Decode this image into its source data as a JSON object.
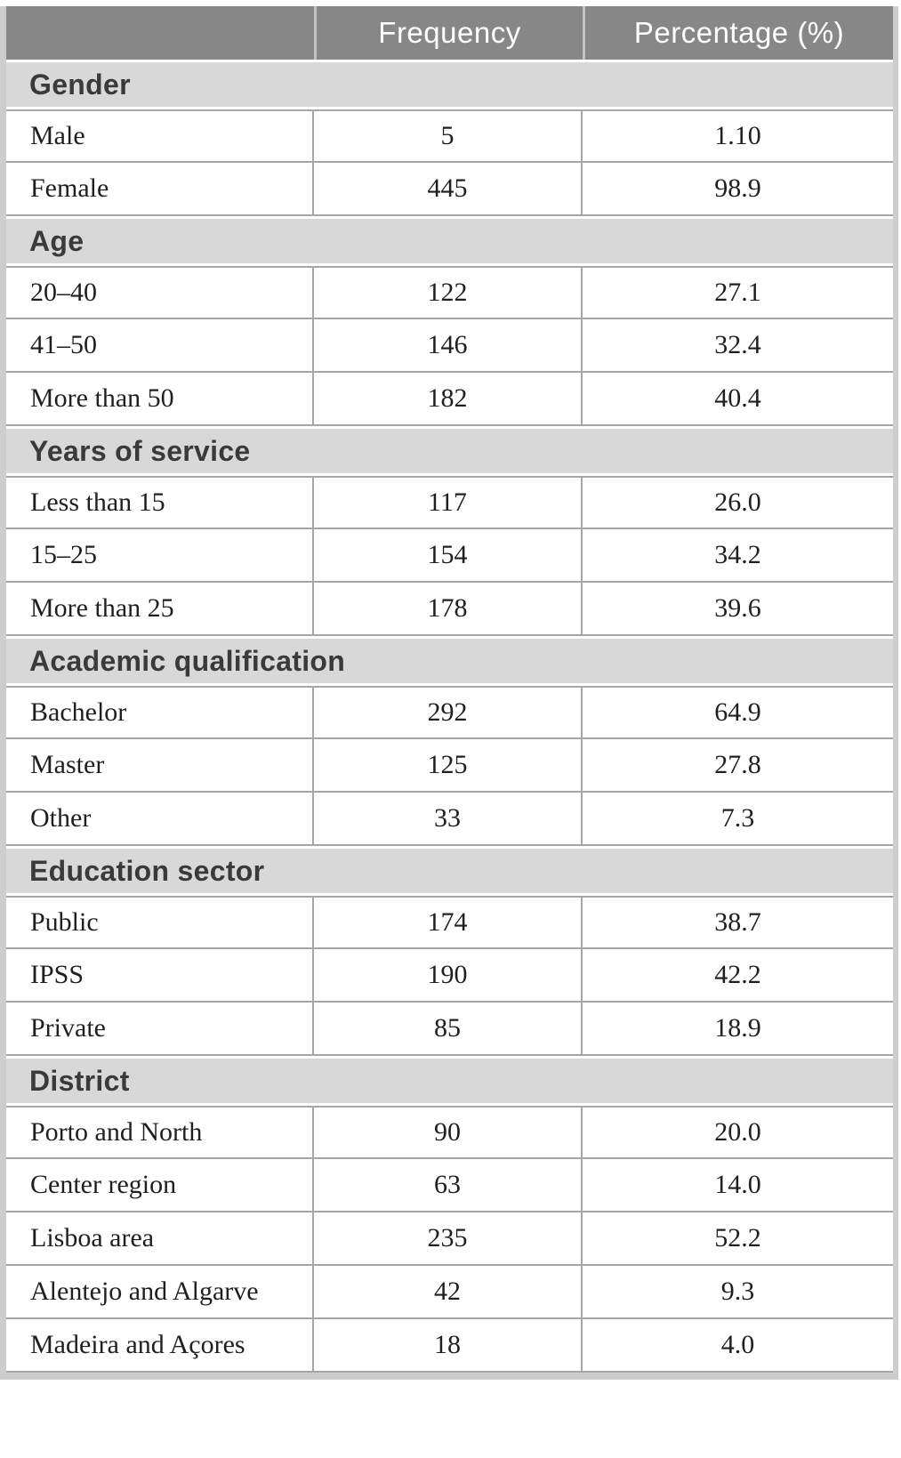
{
  "table": {
    "columns": [
      "",
      "Frequency",
      "Percentage (%)"
    ],
    "sections": [
      {
        "label": "Gender",
        "rows": [
          [
            "Male",
            "5",
            "1.10"
          ],
          [
            "Female",
            "445",
            "98.9"
          ]
        ]
      },
      {
        "label": "Age",
        "rows": [
          [
            "20–40",
            "122",
            "27.1"
          ],
          [
            "41–50",
            "146",
            "32.4"
          ],
          [
            "More than 50",
            "182",
            "40.4"
          ]
        ]
      },
      {
        "label": "Years of service",
        "rows": [
          [
            "Less than 15",
            "117",
            "26.0"
          ],
          [
            "15–25",
            "154",
            "34.2"
          ],
          [
            "More than 25",
            "178",
            "39.6"
          ]
        ]
      },
      {
        "label": "Academic qualification",
        "rows": [
          [
            "Bachelor",
            "292",
            "64.9"
          ],
          [
            "Master",
            "125",
            "27.8"
          ],
          [
            "Other",
            "33",
            "7.3"
          ]
        ]
      },
      {
        "label": "Education sector",
        "rows": [
          [
            "Public",
            "174",
            "38.7"
          ],
          [
            "IPSS",
            "190",
            "42.2"
          ],
          [
            "Private",
            "85",
            "18.9"
          ]
        ]
      },
      {
        "label": "District",
        "rows": [
          [
            "Porto and North",
            "90",
            "20.0"
          ],
          [
            "Center region",
            "63",
            "14.0"
          ],
          [
            "Lisboa area",
            "235",
            "52.2"
          ],
          [
            "Alentejo and Algarve",
            "42",
            "9.3"
          ],
          [
            "Madeira and Açores",
            "18",
            "4.0"
          ]
        ]
      }
    ],
    "colors": {
      "header_bg": "#878787",
      "header_text": "#ffffff",
      "section_bg": "#d8d8d8",
      "grid_line": "#a6a6a6",
      "outer_frame": "#cdcdcd",
      "data_text": "#1f1f1f",
      "section_text": "#3a3a3a"
    }
  }
}
